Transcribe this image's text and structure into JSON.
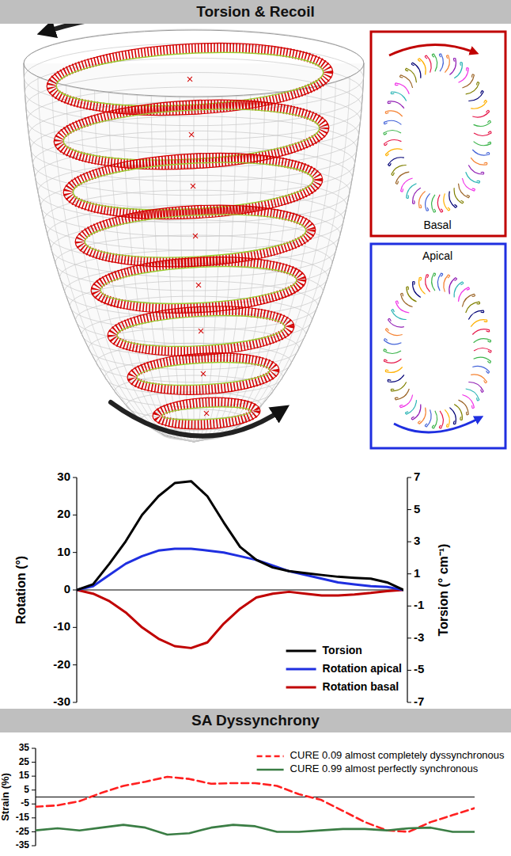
{
  "diagram": {
    "labels": [
      "Basal",
      "Apical"
    ]
  },
  "chart_data": [
    {
      "type": "line",
      "title": "Torsion & Recoil",
      "x": [
        0,
        1,
        2,
        3,
        4,
        5,
        6,
        7,
        8,
        9,
        10,
        11,
        12,
        13,
        14,
        15,
        16,
        17,
        18,
        19,
        20
      ],
      "xlim": [
        0,
        20
      ],
      "ylim": [
        -30,
        30
      ],
      "yticks": [
        -30,
        -20,
        -10,
        0,
        10,
        20,
        30
      ],
      "y_label": "Rotation (°)",
      "y2lim": [
        -7,
        7
      ],
      "y2ticks": [
        -7,
        -5,
        -3,
        -1,
        1,
        3,
        5,
        7
      ],
      "y2_label": "Torsion (° cm⁻¹)",
      "tick_labels": "y",
      "legend": "lower right",
      "series": [
        {
          "name": "Torsion",
          "color": "#000000",
          "axis": "y2",
          "line_style": "solid",
          "values": [
            0,
            0.35,
            1.63,
            3.03,
            4.67,
            5.83,
            6.65,
            6.77,
            5.83,
            4.2,
            2.68,
            1.87,
            1.4,
            1.17,
            1.05,
            0.93,
            0.82,
            0.75,
            0.7,
            0.47,
            0
          ]
        },
        {
          "name": "Rotation apical",
          "color": "#1f2fe0",
          "line_style": "solid",
          "values": [
            0,
            1,
            4,
            7,
            9,
            10.5,
            11,
            11,
            10.5,
            10,
            9,
            8,
            6.5,
            5,
            4,
            3,
            2,
            1.5,
            1,
            0.8,
            0
          ]
        },
        {
          "name": "Rotation basal",
          "color": "#c00000",
          "line_style": "solid",
          "values": [
            0,
            -1,
            -3,
            -6,
            -10,
            -13,
            -15,
            -15.5,
            -14,
            -9,
            -5,
            -2,
            -1,
            -0.5,
            -1,
            -1.5,
            -1.5,
            -1.2,
            -0.8,
            -0.3,
            0
          ]
        }
      ]
    },
    {
      "type": "line",
      "title": "SA Dyssynchrony",
      "x": [
        0,
        1,
        2,
        3,
        4,
        5,
        6,
        7,
        8,
        9,
        10,
        11,
        12,
        13,
        14,
        15,
        16,
        17,
        18,
        19,
        20
      ],
      "xlim": [
        0,
        20
      ],
      "ylim": [
        -35,
        35
      ],
      "yticks": [
        -35,
        -25,
        -15,
        -5,
        5,
        15,
        25,
        35
      ],
      "y_label": "Strain (%)",
      "tick_labels": "y",
      "legend": "upper right",
      "series": [
        {
          "name": "CURE 0.09 almost completely dyssynchronous",
          "color": "#ff2020",
          "line_style": "dashed",
          "values": [
            -7,
            -6,
            -3,
            3,
            8,
            11,
            14.5,
            13,
            9.5,
            10,
            10,
            8,
            2,
            -2,
            -10,
            -18,
            -24,
            -25,
            -18,
            -13,
            -8
          ]
        },
        {
          "name": "CURE 0.99 almost perfectly synchronous",
          "color": "#3a7d44",
          "line_style": "solid",
          "values": [
            -24,
            -22.5,
            -24,
            -22,
            -20,
            -22,
            -27,
            -26,
            -22,
            -20,
            -21,
            -25,
            -25,
            -24,
            -23,
            -23,
            -24,
            -22.5,
            -22,
            -25,
            -25
          ]
        }
      ]
    }
  ]
}
